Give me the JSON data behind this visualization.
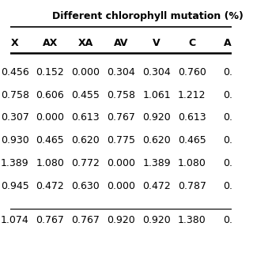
{
  "title": "Different chlorophyll mutation (%)",
  "columns": [
    "X",
    "AX",
    "XA",
    "AV",
    "V",
    "C",
    "A"
  ],
  "rows": [
    [
      "0.456",
      "0.152",
      "0.000",
      "0.304",
      "0.304",
      "0.760",
      "0."
    ],
    [
      "0.758",
      "0.606",
      "0.455",
      "0.758",
      "1.061",
      "1.212",
      "0."
    ],
    [
      "0.307",
      "0.000",
      "0.613",
      "0.767",
      "0.920",
      "0.613",
      "0."
    ],
    [
      "0.930",
      "0.465",
      "0.620",
      "0.775",
      "0.620",
      "0.465",
      "0."
    ],
    [
      "1.389",
      "1.080",
      "0.772",
      "0.000",
      "1.389",
      "1.080",
      "0."
    ],
    [
      "0.945",
      "0.472",
      "0.630",
      "0.000",
      "0.472",
      "0.787",
      "0."
    ]
  ],
  "footer_row": [
    "1.074",
    "0.767",
    "0.767",
    "0.920",
    "0.920",
    "1.380",
    "0."
  ],
  "bg_color": "#ffffff",
  "text_color": "#000000",
  "header_fontsize": 9.0,
  "cell_fontsize": 9.0,
  "title_fontsize": 9.0
}
